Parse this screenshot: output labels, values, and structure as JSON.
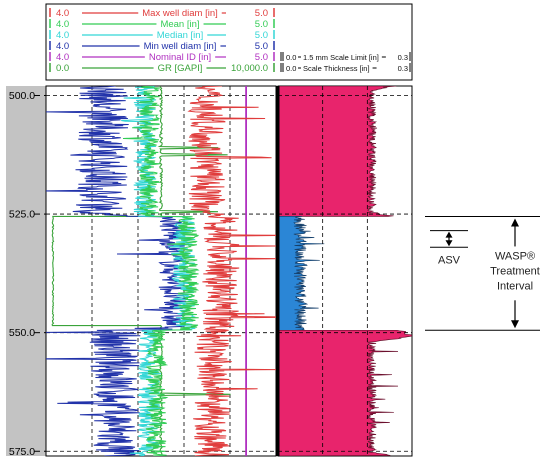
{
  "chart_data": {
    "type": "line",
    "title": "",
    "depth_axis": {
      "label": "",
      "min": 498,
      "max": 576,
      "ticks": [
        500.0,
        525.0,
        550.0,
        575.0
      ],
      "tick_labels": [
        "500.0",
        "525.0",
        "550.0",
        "575.0"
      ]
    },
    "curves": [
      {
        "name": "Max well diam [in]",
        "min": "4.0",
        "max": "5.0",
        "color": "#e03c3c"
      },
      {
        "name": "Mean [in]",
        "min": "4.0",
        "max": "5.0",
        "color": "#33cc55"
      },
      {
        "name": "Median [in]",
        "min": "4.0",
        "max": "5.0",
        "color": "#33d6d6"
      },
      {
        "name": "Min well diam [in]",
        "min": "4.0",
        "max": "5.0",
        "color": "#2233aa"
      },
      {
        "name": "Nominal ID [in]",
        "min": "4.0",
        "max": "5.0",
        "color": "#b030c0"
      },
      {
        "name": "GR [GAPI]",
        "min": "0.0",
        "max": "10,000.0",
        "color": "#3aa33a"
      }
    ],
    "track2_headers": [
      {
        "min": "0.0",
        "name": "1.5 mm Scale Limit [in]",
        "max": "0.3"
      },
      {
        "min": "0.0",
        "name": "Scale Thickness [in]",
        "max": "0.3"
      }
    ],
    "gr_segments": [
      {
        "depth_top": 498,
        "depth_bottom": 525.5,
        "value_gapi": 5000
      },
      {
        "depth_top": 525.5,
        "depth_bottom": 548.5,
        "value_gapi": 300
      },
      {
        "depth_top": 548.5,
        "depth_bottom": 576,
        "value_gapi": 5000
      }
    ],
    "nominal_id_in": 4.87,
    "scale_thickness_zones": [
      {
        "depth_top": 498,
        "depth_bottom": 525.5,
        "typical_in": 0.21,
        "max_in": 0.27,
        "color": "#e8246c"
      },
      {
        "depth_top": 525.5,
        "depth_bottom": 549.5,
        "typical_in": 0.05,
        "max_in": 0.1,
        "color": "#2b86d6"
      },
      {
        "depth_top": 549.5,
        "depth_bottom": 576,
        "typical_in": 0.21,
        "max_in": 0.27,
        "color": "#e8246c"
      }
    ],
    "annotations": {
      "treatment": {
        "label_lines": [
          "WASP®",
          "Treatment",
          "Interval"
        ],
        "depth_top": 525.5,
        "depth_bottom": 549.5
      },
      "asv": {
        "label": "ASV",
        "depth_top": 528.5,
        "depth_bottom": 532.0
      }
    }
  },
  "colors": {
    "depth_track_fill": "#c3c3c3",
    "scale_fill_upper": "#e8246c",
    "scale_fill_middle": "#2b86d6"
  }
}
